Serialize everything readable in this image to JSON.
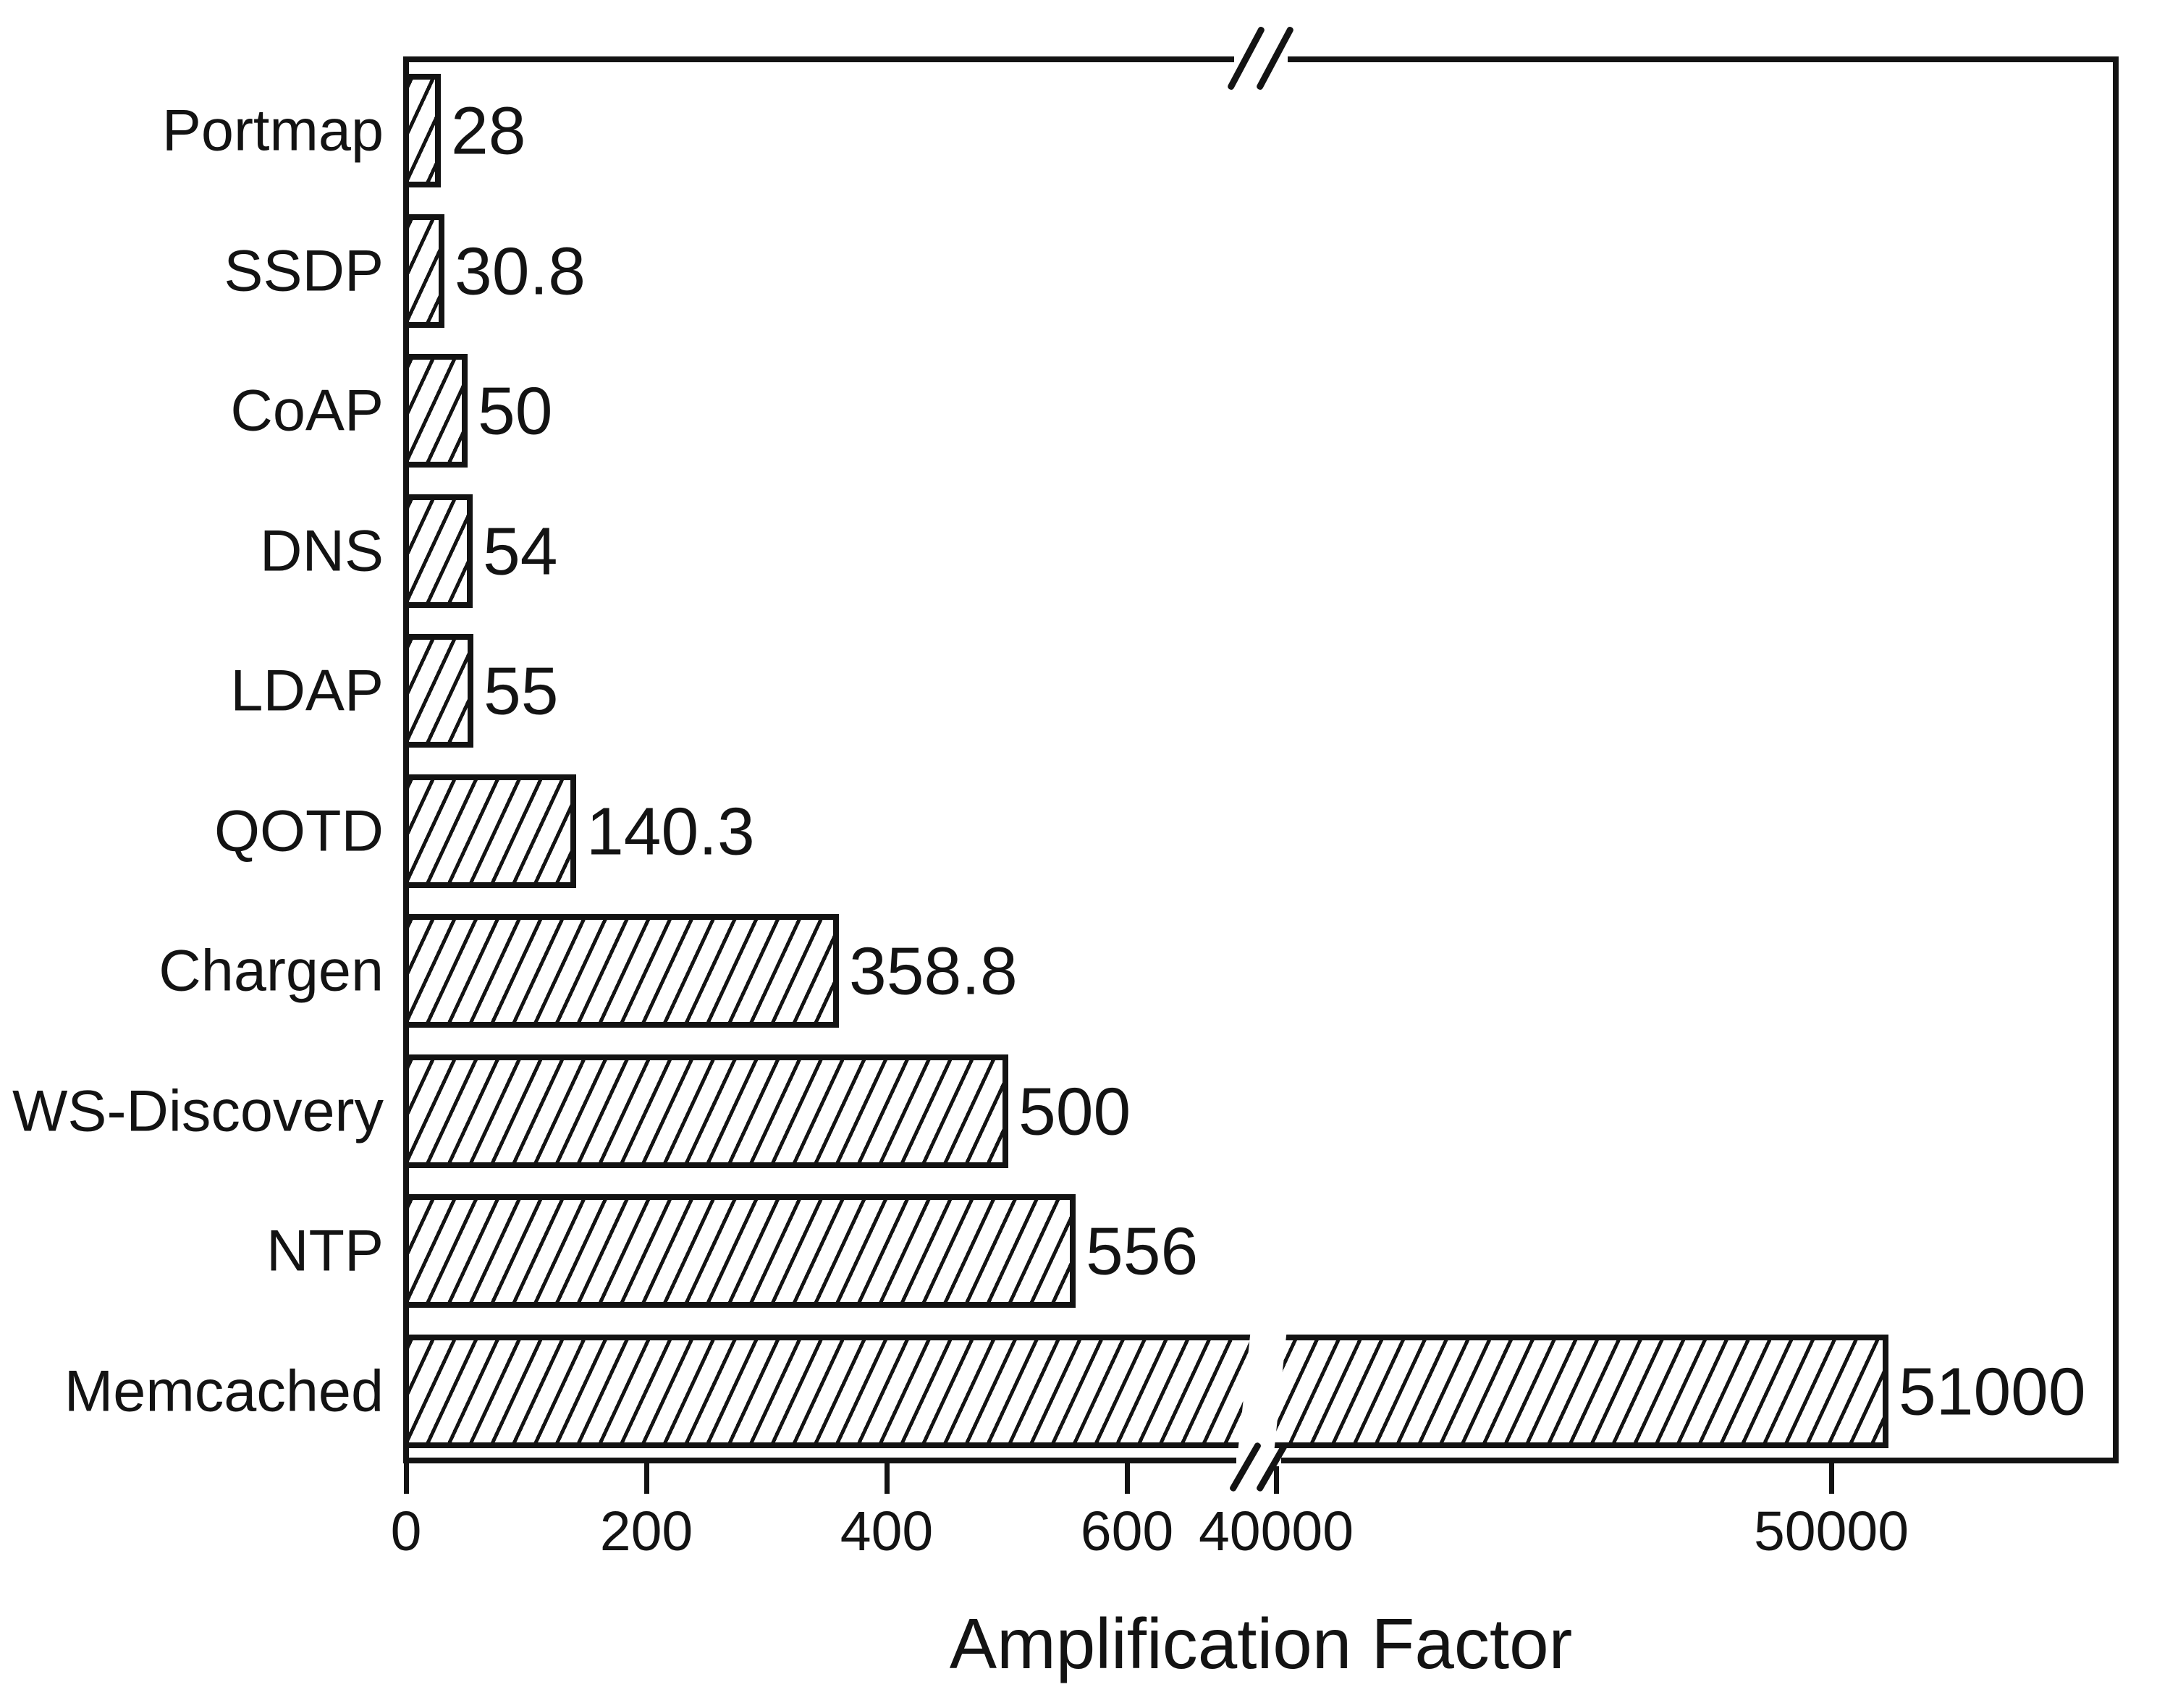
{
  "figure": {
    "background": "#ffffff"
  },
  "chart_data": {
    "type": "bar",
    "orientation": "horizontal",
    "title": "",
    "xlabel": "Amplification Factor",
    "ylabel": "",
    "categories": [
      "Portmap",
      "SSDP",
      "CoAP",
      "DNS",
      "LDAP",
      "QOTD",
      "Chargen",
      "WS-Discovery",
      "NTP",
      "Memcached"
    ],
    "values": [
      28,
      30.8,
      50,
      54,
      55,
      140.3,
      358.8,
      500,
      556,
      51000
    ],
    "bar_labels": [
      "28",
      "30.8",
      "50",
      "54",
      "55",
      "140.3",
      "358.8",
      "500",
      "556",
      "51000"
    ],
    "x_axis": {
      "label": "Amplification Factor",
      "ticks": [
        {
          "value": 0,
          "label": "0"
        },
        {
          "value": 200,
          "label": "200"
        },
        {
          "value": 400,
          "label": "400"
        },
        {
          "value": 600,
          "label": "600"
        },
        {
          "value": 40000,
          "label": "40000"
        },
        {
          "value": 50000,
          "label": "50000"
        }
      ],
      "broken_axis": true,
      "break_between": [
        600,
        40000
      ]
    },
    "grid": false,
    "legend": null,
    "style": {
      "bar_fill": "#ffffff",
      "hatch_color": "#131313",
      "text_color": "#131313",
      "pattern": "diagonal-hatch"
    }
  }
}
